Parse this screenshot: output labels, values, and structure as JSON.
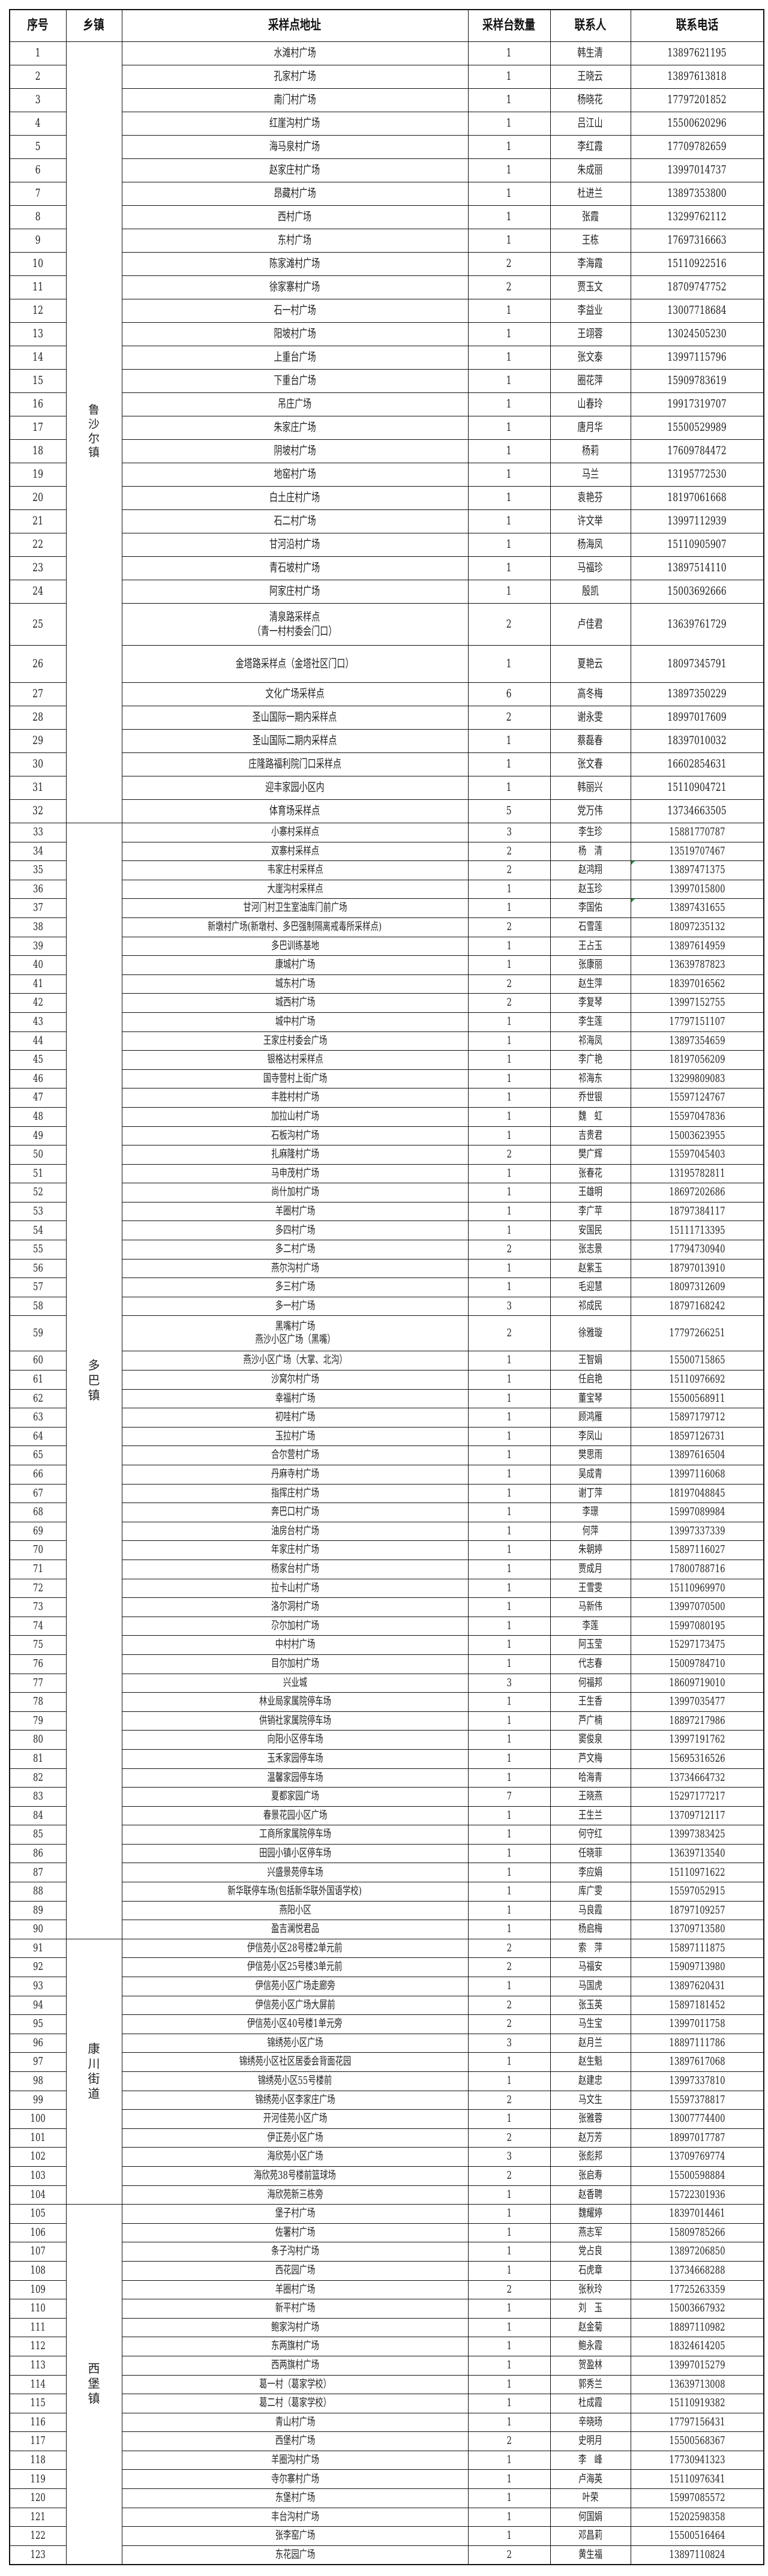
{
  "header": {
    "seq": "序号",
    "town": "乡镇",
    "address": "采样点地址",
    "count": "采样台数量",
    "contact": "联系人",
    "phone": "联系电话"
  },
  "comment_marker_color": "#1a9a2a",
  "towns": [
    {
      "name": "鲁\n沙\n尔\n镇",
      "rows": [
        [
          "1",
          "水滩村广场",
          "1",
          "韩生清",
          "13897621195"
        ],
        [
          "2",
          "孔家村广场",
          "1",
          "王晓云",
          "13897613818"
        ],
        [
          "3",
          "南门村广场",
          "1",
          "杨晓花",
          "17797201852"
        ],
        [
          "4",
          "红崖沟村广场",
          "1",
          "吕江山",
          "15500620296"
        ],
        [
          "5",
          "海马泉村广场",
          "1",
          "李红霞",
          "17709782659"
        ],
        [
          "6",
          "赵家庄村广场",
          "1",
          "朱成丽",
          "13997014737"
        ],
        [
          "7",
          "昂藏村广场",
          "1",
          "杜进兰",
          "13897353800"
        ],
        [
          "8",
          "西村广场",
          "1",
          "张霞",
          "13299762112"
        ],
        [
          "9",
          "东村广场",
          "1",
          "王栋",
          "17697316663"
        ],
        [
          "10",
          "陈家滩村广场",
          "2",
          "李海霞",
          "15110922516"
        ],
        [
          "11",
          "徐家寨村广场",
          "2",
          "贾玉文",
          "18709747752"
        ],
        [
          "12",
          "石一村广场",
          "1",
          "李益业",
          "13007718684"
        ],
        [
          "13",
          "阳坡村广场",
          "1",
          "王翊蓉",
          "13024505230"
        ],
        [
          "14",
          "上重台广场",
          "1",
          "张文泰",
          "13997115796"
        ],
        [
          "15",
          "下重台广场",
          "1",
          "圈花萍",
          "15909783619"
        ],
        [
          "16",
          "吊庄广场",
          "1",
          "山春玲",
          "19917319707"
        ],
        [
          "17",
          "朱家庄广场",
          "1",
          "唐月华",
          "15500529989"
        ],
        [
          "18",
          "阴坡村广场",
          "1",
          "杨莉",
          "17609784472"
        ],
        [
          "19",
          "地窑村广场",
          "1",
          "马兰",
          "13195772530"
        ],
        [
          "20",
          "白土庄村广场",
          "1",
          "袁艳芬",
          "18197061668"
        ],
        [
          "21",
          "石二村广场",
          "1",
          "许文举",
          "13997112939"
        ],
        [
          "22",
          "甘河沿村广场",
          "1",
          "杨海凤",
          "15110905907"
        ],
        [
          "23",
          "青石坡村广场",
          "1",
          "马福珍",
          "13897514110"
        ],
        [
          "24",
          "阿家庄村广场",
          "1",
          "殷凯",
          "15003692666"
        ],
        [
          "25",
          "清泉路采样点\n（青一村村委会门口）",
          "2",
          "卢佳君",
          "13639761729"
        ],
        [
          "26",
          "金塔路采样点（金塔社区门口）",
          "1",
          "夏艳云",
          "18097345791"
        ],
        [
          "27",
          "文化广场采样点",
          "6",
          "高冬梅",
          "13897350229"
        ],
        [
          "28",
          "圣山国际一期内采样点",
          "2",
          "谢永雯",
          "18997017609"
        ],
        [
          "29",
          "圣山国际二期内采样点",
          "1",
          "蔡磊春",
          "18397010032"
        ],
        [
          "30",
          "庄隆路福利院门口采样点",
          "1",
          "张文春",
          "16602854631"
        ],
        [
          "31",
          "迎丰家园小区内",
          "1",
          "韩丽兴",
          "15110904721"
        ],
        [
          "32",
          "体育场采样点",
          "5",
          "党万伟",
          "13734663505"
        ]
      ]
    },
    {
      "name": "多\n巴\n镇",
      "rows": [
        [
          "33",
          "小寨村采样点",
          "3",
          "李生珍",
          "15881770787"
        ],
        [
          "34",
          "双寨村采样点",
          "2",
          "杨　清",
          "13519707467"
        ],
        [
          "35",
          "韦家庄村采样点",
          "2",
          "赵鸿翔",
          "13897471375"
        ],
        [
          "36",
          "大崖沟村采样点",
          "1",
          "赵玉珍",
          "13997015800"
        ],
        [
          "37",
          "甘河门村卫生室油库门前广场",
          "1",
          "李国佑",
          "13897431655"
        ],
        [
          "38",
          "新墩村广场(新墩村、多巴强制隔离戒毒所采样点)",
          "2",
          "石雪莲",
          "18097235132"
        ],
        [
          "39",
          "多巴训练基地",
          "1",
          "王占玉",
          "13897614959"
        ],
        [
          "40",
          "康城村广场",
          "1",
          "张康丽",
          "13639787823"
        ],
        [
          "41",
          "城东村广场",
          "2",
          "赵生萍",
          "18397016562"
        ],
        [
          "42",
          "城西村广场",
          "2",
          "李复琴",
          "13997152755"
        ],
        [
          "43",
          "城中村广场",
          "1",
          "李生莲",
          "17797151107"
        ],
        [
          "44",
          "王家庄村委会广场",
          "1",
          "祁海凤",
          "13897354659"
        ],
        [
          "45",
          "银格达村采样点",
          "1",
          "李广艳",
          "18197056209"
        ],
        [
          "46",
          "国寺营村上街广场",
          "1",
          "祁海东",
          "13299809083"
        ],
        [
          "47",
          "丰胜村村广场",
          "1",
          "乔世银",
          "15597124767"
        ],
        [
          "48",
          "加拉山村广场",
          "1",
          "魏　虹",
          "15597047836"
        ],
        [
          "49",
          "石板沟村广场",
          "1",
          "吉贵君",
          "15003623955"
        ],
        [
          "50",
          "扎麻隆村广场",
          "2",
          "樊广辉",
          "15597045403"
        ],
        [
          "51",
          "马申茂村广场",
          "1",
          "张春花",
          "13195782811"
        ],
        [
          "52",
          "尚什加村广场",
          "1",
          "王雄明",
          "18697202686"
        ],
        [
          "53",
          "羊圈村广场",
          "1",
          "李广苹",
          "18797384117"
        ],
        [
          "54",
          "多四村广场",
          "1",
          "安国民",
          "15111713395"
        ],
        [
          "55",
          "多二村广场",
          "2",
          "张志景",
          "17794730940"
        ],
        [
          "56",
          "燕尔沟村广场",
          "1",
          "赵紫玉",
          "18797013910"
        ],
        [
          "57",
          "多三村广场",
          "1",
          "毛迎慧",
          "18097312609"
        ],
        [
          "58",
          "多一村广场",
          "3",
          "祁成民",
          "18797168242"
        ],
        [
          "59",
          "黑嘴村广场\n燕沙小区广场（黑嘴）",
          "2",
          "徐雅璇",
          "17797266251"
        ],
        [
          "60",
          "燕沙小区广场（大掌、北沟）",
          "1",
          "王智娟",
          "15500715865"
        ],
        [
          "61",
          "沙窝尔村广场",
          "1",
          "任启艳",
          "15110976692"
        ],
        [
          "62",
          "幸福村广场",
          "1",
          "董宝琴",
          "15500568911"
        ],
        [
          "63",
          "初哇村广场",
          "1",
          "顾鸿雁",
          "15897179712"
        ],
        [
          "64",
          "玉拉村广场",
          "1",
          "李凤山",
          "18597126731"
        ],
        [
          "65",
          "合尔营村广场",
          "1",
          "樊思雨",
          "13897616504"
        ],
        [
          "66",
          "丹麻寺村广场",
          "1",
          "吴成青",
          "13997116068"
        ],
        [
          "67",
          "指挥庄村广场",
          "1",
          "谢丁萍",
          "18197048845"
        ],
        [
          "68",
          "奔巴口村广场",
          "1",
          "李璟",
          "15997089984"
        ],
        [
          "69",
          "油房台村广场",
          "1",
          "何萍",
          "13997337339"
        ],
        [
          "70",
          "年家庄村广场",
          "1",
          "朱朝婷",
          "15897116027"
        ],
        [
          "71",
          "杨家台村广场",
          "1",
          "贾成月",
          "17800788716"
        ],
        [
          "72",
          "拉卡山村广场",
          "1",
          "王雪雯",
          "15110969970"
        ],
        [
          "73",
          "洛尔洞村广场",
          "1",
          "马新伟",
          "13997070500"
        ],
        [
          "74",
          "尕尔加村广场",
          "1",
          "李莲",
          "15997080195"
        ],
        [
          "75",
          "中村村广场",
          "1",
          "阿玉莹",
          "15297173475"
        ],
        [
          "76",
          "目尔加村广场",
          "1",
          "代志春",
          "15009784710"
        ],
        [
          "77",
          "兴业城",
          "3",
          "何福邦",
          "18609719010"
        ],
        [
          "78",
          "林业局家属院停车场",
          "1",
          "王生香",
          "13997035477"
        ],
        [
          "79",
          "供销社家属院停车场",
          "1",
          "芦广楠",
          "18897217986"
        ],
        [
          "80",
          "向阳小区停车场",
          "1",
          "窦俊泉",
          "13997191762"
        ],
        [
          "81",
          "玉禾家园停车场",
          "1",
          "芦文梅",
          "15695316526"
        ],
        [
          "82",
          "温馨家园停车场",
          "1",
          "哈海青",
          "13734664732"
        ],
        [
          "83",
          "夏都家园广场",
          "7",
          "王晓燕",
          "15297177217"
        ],
        [
          "84",
          "春景花园小区广场",
          "1",
          "王生兰",
          "13709712117"
        ],
        [
          "85",
          "工商所家属院停车场",
          "1",
          "何守红",
          "13997383425"
        ],
        [
          "86",
          "田园小镇小区停车场",
          "1",
          "任晓菲",
          "13639713540"
        ],
        [
          "87",
          "兴盛景苑停车场",
          "1",
          "李应娟",
          "15110971622"
        ],
        [
          "88",
          "新华联停车场(包括新华联外国语学校)",
          "1",
          "库广雯",
          "15597052915"
        ],
        [
          "89",
          "燕阳小区",
          "1",
          "马良霞",
          "18797109257"
        ],
        [
          "90",
          "盈吉澜悦君品",
          "1",
          "杨启梅",
          "13709713580"
        ]
      ]
    },
    {
      "name": "康\n川\n街\n道",
      "rows": [
        [
          "91",
          "伊信苑小区28号楼2单元前",
          "2",
          "索　萍",
          "15897111875"
        ],
        [
          "92",
          "伊信苑小区25号楼3单元前",
          "2",
          "马福安",
          "15909713980"
        ],
        [
          "93",
          "伊信苑小区广场走廊旁",
          "1",
          "马国虎",
          "13897620431"
        ],
        [
          "94",
          "伊信苑小区广场大屏前",
          "2",
          "张玉英",
          "15897181452"
        ],
        [
          "95",
          "伊信苑小区40号楼1单元旁",
          "2",
          "马生宝",
          "13997011758"
        ],
        [
          "96",
          "锦绣苑小区广场",
          "3",
          "赵月兰",
          "18897111786"
        ],
        [
          "97",
          "锦绣苑小区社区居委会背面花园",
          "1",
          "赵生魁",
          "13897617068"
        ],
        [
          "98",
          "锦绣苑小区55号楼前",
          "1",
          "赵建忠",
          "13997337810"
        ],
        [
          "99",
          "锦绣苑小区李家庄广场",
          "2",
          "马文生",
          "15597378817"
        ],
        [
          "100",
          "开河佳苑小区广场",
          "1",
          "张雅蓉",
          "13007774400"
        ],
        [
          "101",
          "伊正苑小区广场",
          "2",
          "赵万芳",
          "18997017787"
        ],
        [
          "102",
          "海欣苑小区广场",
          "3",
          "张彪邦",
          "13709769774"
        ],
        [
          "103",
          "海欣苑38号楼前篮球场",
          "2",
          "张启寿",
          "15500598884"
        ],
        [
          "104",
          "海欣苑新三栋旁",
          "1",
          "赵香聘",
          "15722301936"
        ]
      ]
    },
    {
      "name": "西\n堡\n镇",
      "rows": [
        [
          "105",
          "堡子村广场",
          "1",
          "魏耀婷",
          "18397014461"
        ],
        [
          "106",
          "佐署村广场",
          "1",
          "燕志军",
          "15809785266"
        ],
        [
          "107",
          "条子沟村广场",
          "1",
          "党占良",
          "13897206850"
        ],
        [
          "108",
          "西花园广场",
          "1",
          "石虎章",
          "13734668288"
        ],
        [
          "109",
          "羊圈村广场",
          "2",
          "张秋玲",
          "17725263359"
        ],
        [
          "110",
          "新平村广场",
          "1",
          "刘　玉",
          "15003667932"
        ],
        [
          "111",
          "鲍家沟村广场",
          "1",
          "赵金菊",
          "18897110982"
        ],
        [
          "112",
          "东两旗村广场",
          "1",
          "鲍永霞",
          "18324614205"
        ],
        [
          "113",
          "西两旗村广场",
          "1",
          "贺盈林",
          "13997015279"
        ],
        [
          "114",
          "葛一村（葛家学校）",
          "1",
          "郭秀兰",
          "13639713008"
        ],
        [
          "115",
          "葛二村（葛家学校）",
          "1",
          "杜成霞",
          "15110919382"
        ],
        [
          "116",
          "青山村广场",
          "1",
          "辛晓旸",
          "17797156431"
        ],
        [
          "117",
          "西堡村广场",
          "2",
          "史明月",
          "15500568367"
        ],
        [
          "118",
          "羊圈沟村广场",
          "1",
          "李　峰",
          "17730941323"
        ],
        [
          "119",
          "寺尔寨村广场",
          "1",
          "卢海英",
          "15110976341"
        ],
        [
          "120",
          "东堡村广场",
          "1",
          "叶荣",
          "15997085572"
        ],
        [
          "121",
          "丰台沟村广场",
          "1",
          "何国娟",
          "15202598358"
        ],
        [
          "122",
          "张李窑广场",
          "1",
          "邓昌莉",
          "15500516464"
        ],
        [
          "123",
          "东花园广场",
          "2",
          "黄生福",
          "13897110824"
        ]
      ]
    }
  ],
  "marked_phone_rows": [
    "35",
    "37"
  ]
}
